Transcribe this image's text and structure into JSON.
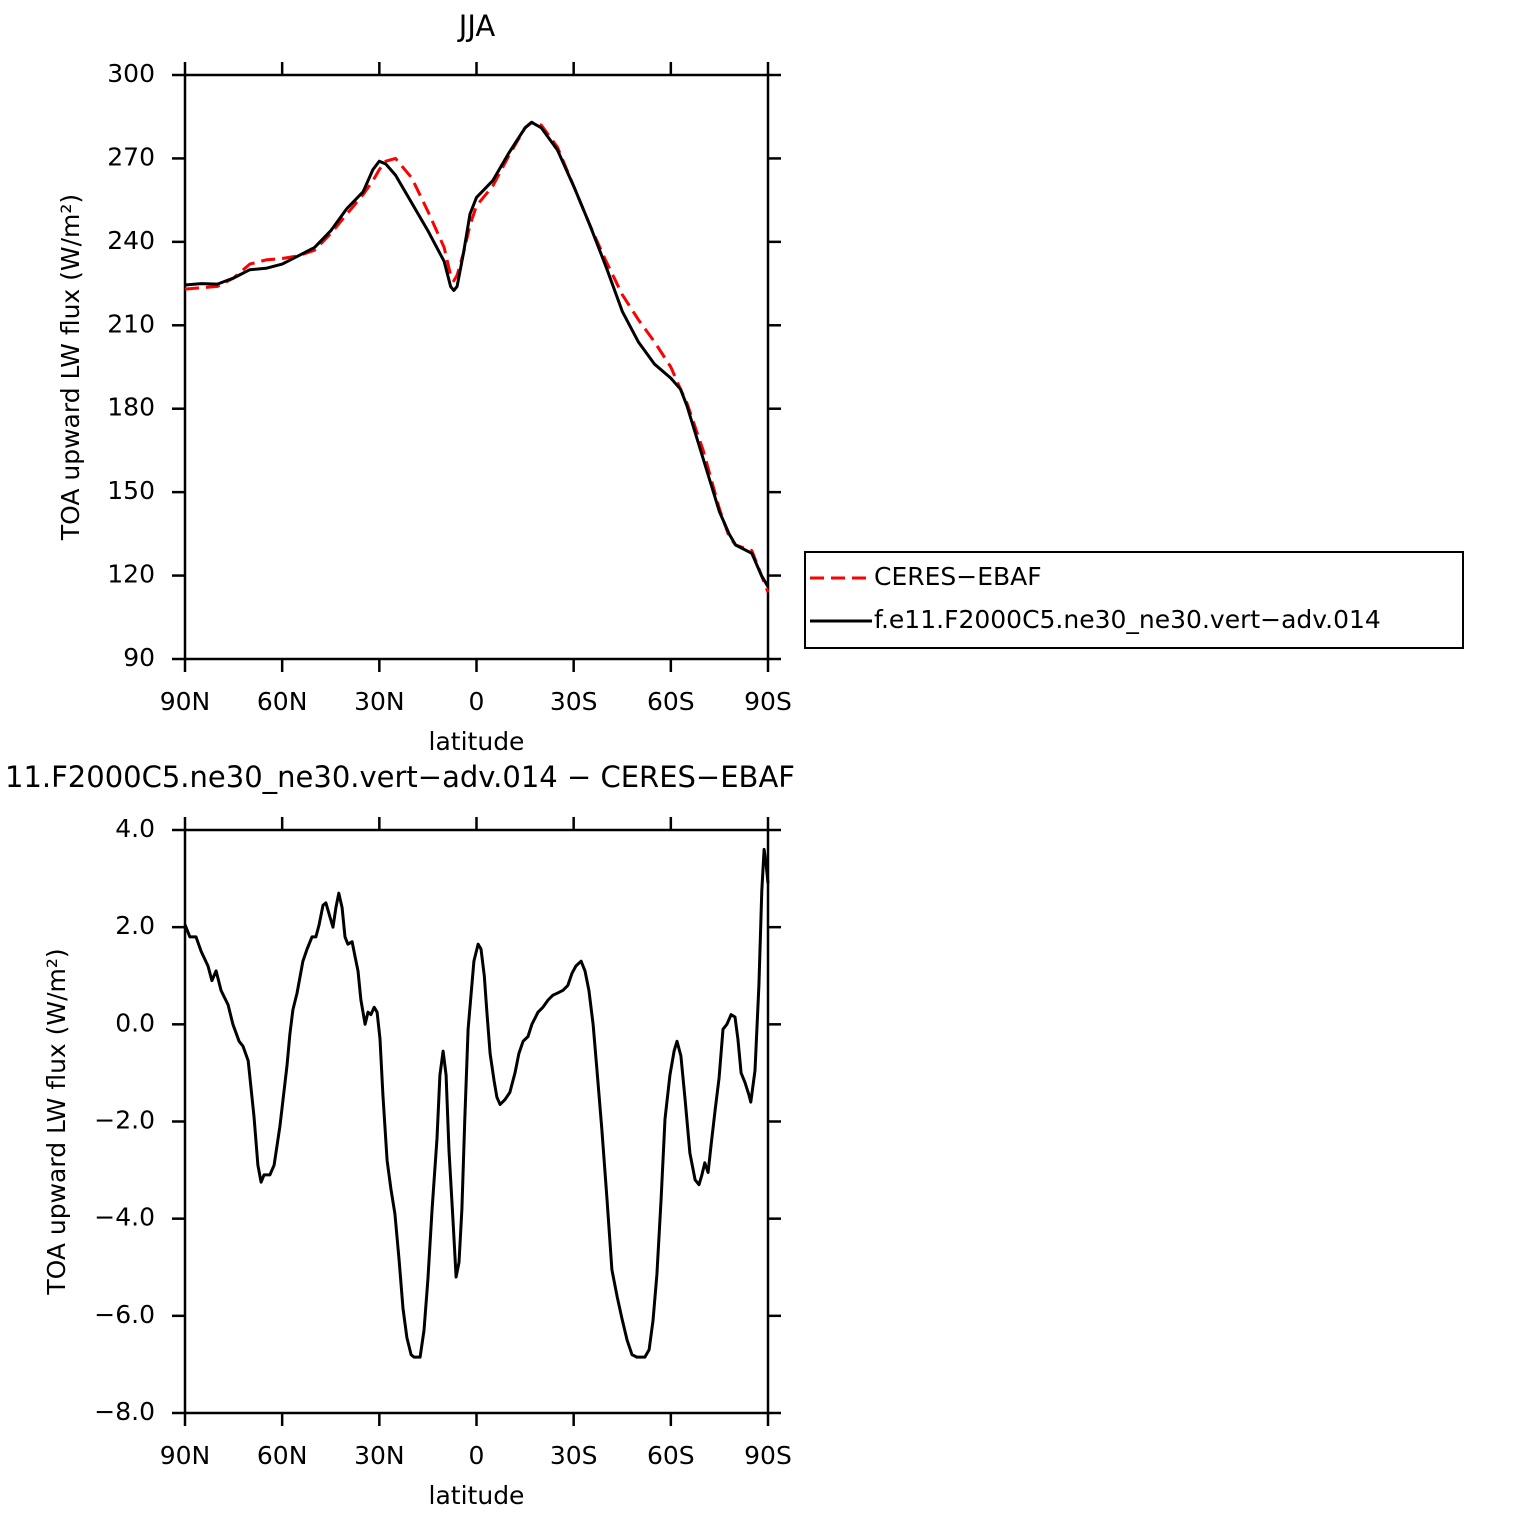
{
  "chart_data": [
    {
      "type": "line",
      "title": "JJA",
      "xlabel": "latitude",
      "ylabel": "TOA upward LW flux (W/m²)",
      "x": [
        90,
        85,
        80,
        75,
        70,
        65,
        60,
        55,
        50,
        45,
        40,
        35,
        32,
        30,
        28,
        25,
        20,
        15,
        10,
        8,
        7,
        6,
        4,
        2,
        0,
        -5,
        -10,
        -15,
        -17,
        -20,
        -25,
        -30,
        -35,
        -40,
        -45,
        -50,
        -55,
        -60,
        -63,
        -65,
        -70,
        -75,
        -78,
        -80,
        -85,
        -88,
        -90
      ],
      "series": [
        {
          "name": "CERES−EBAF",
          "color": "#ff0000",
          "linestyle": "dashed",
          "values": [
            223,
            223.5,
            224,
            227,
            232,
            233.5,
            234,
            235,
            237,
            243,
            250,
            257,
            262,
            266,
            269,
            270,
            263,
            251,
            238,
            228,
            226,
            228,
            236,
            246,
            253,
            260,
            271,
            281,
            283,
            282,
            274,
            260,
            246,
            233,
            221,
            212,
            204,
            195,
            187,
            182,
            165,
            144,
            134,
            131,
            129,
            120,
            114
          ]
        },
        {
          "name": "f.e11.F2000C5.ne30_ne30.vert−adv.014",
          "color": "#000000",
          "linestyle": "solid",
          "values": [
            224.5,
            225,
            224.8,
            227,
            230,
            230.5,
            232,
            235,
            238,
            244,
            252,
            258,
            266,
            269,
            268,
            264,
            254,
            244,
            233,
            224,
            222.5,
            224,
            236,
            250,
            256,
            262,
            272,
            281,
            283,
            281,
            273,
            260,
            246,
            231,
            215,
            204,
            196,
            191,
            187,
            181,
            162,
            143,
            135,
            131,
            128,
            120,
            116
          ]
        }
      ],
      "xlim": [
        90,
        -90
      ],
      "xticks": [
        {
          "value": 90,
          "label": "90N"
        },
        {
          "value": 60,
          "label": "60N"
        },
        {
          "value": 30,
          "label": "30N"
        },
        0,
        {
          "value": -30,
          "label": "30S"
        },
        {
          "value": -60,
          "label": "60S"
        },
        {
          "value": -90,
          "label": "90S"
        }
      ],
      "ylim": [
        90,
        300
      ],
      "yticks": [
        90,
        120,
        150,
        180,
        210,
        240,
        270,
        300
      ],
      "legend": "outside-right"
    },
    {
      "type": "line",
      "title": "11.F2000C5.ne30_ne30.vert−adv.014 − CERES−EBAF",
      "xlabel": "latitude",
      "ylabel": "TOA upward LW flux (W/m²)",
      "x": [
        90,
        88.5,
        86.6,
        85,
        82.9,
        81.7,
        80.4,
        78.9,
        76.7,
        75.2,
        73.3,
        72.1,
        70.5,
        68.7,
        67.5,
        66.5,
        65.6,
        63.8,
        62.5,
        60.7,
        58.5,
        57.6,
        56.7,
        55.4,
        53.6,
        52.3,
        50.8,
        49.6,
        48.6,
        47.4,
        46.5,
        45.2,
        44.3,
        43.4,
        42.5,
        41.5,
        40.6,
        39.7,
        38.4,
        37.5,
        36.6,
        35.7,
        34.4,
        33.5,
        32.6,
        31.6,
        30.7,
        29.8,
        28.9,
        27.6,
        26.4,
        25.2,
        23.9,
        22.7,
        21.5,
        20.2,
        19.3,
        17.4,
        16.2,
        15,
        13.7,
        12.2,
        11.3,
        10.3,
        9.4,
        8.5,
        7.3,
        6.3,
        5.4,
        4.5,
        3.6,
        2.6,
        1.7,
        0.8,
        -0.5,
        -1.4,
        -2.4,
        -3.2,
        -4.2,
        -5.4,
        -6.3,
        -7.3,
        -8.8,
        -10.3,
        -11.9,
        -13.1,
        -14.4,
        -15.9,
        -17.1,
        -19,
        -20.5,
        -22.1,
        -23.6,
        -25.2,
        -26.7,
        -28.2,
        -29.5,
        -30.7,
        -32.3,
        -33.5,
        -34.7,
        -36,
        -37.2,
        -38.7,
        -40.3,
        -41.8,
        -43.4,
        -44.9,
        -46.5,
        -48,
        -49.5,
        -52,
        -53.3,
        -54.5,
        -55.7,
        -57,
        -58.2,
        -59.7,
        -61,
        -61.9,
        -63.1,
        -64.4,
        -65.9,
        -67.5,
        -68.7,
        -69.6,
        -70.5,
        -71.5,
        -72.4,
        -73.7,
        -74.9,
        -76.1,
        -77.3,
        -78.6,
        -79.8,
        -80.7,
        -81.7,
        -82.9,
        -84.1,
        -84.7,
        -86,
        -87.2,
        -88.1,
        -88.8,
        -89.4,
        -90
      ],
      "values": [
        2.05,
        1.8,
        1.8,
        1.5,
        1.2,
        0.9,
        1.1,
        0.7,
        0.4,
        0,
        -0.35,
        -0.45,
        -0.75,
        -1.9,
        -2.9,
        -3.25,
        -3.1,
        -3.1,
        -2.9,
        -2.1,
        -0.85,
        -0.2,
        0.3,
        0.65,
        1.3,
        1.55,
        1.8,
        1.8,
        2.05,
        2.45,
        2.5,
        2.2,
        2,
        2.4,
        2.7,
        2.4,
        1.8,
        1.65,
        1.7,
        1.4,
        1.1,
        0.5,
        0,
        0.25,
        0.2,
        0.35,
        0.25,
        -0.3,
        -1.45,
        -2.8,
        -3.4,
        -3.9,
        -4.85,
        -5.85,
        -6.45,
        -6.8,
        -6.85,
        -6.85,
        -6.3,
        -5.25,
        -3.8,
        -2.35,
        -1.05,
        -0.55,
        -1.05,
        -2.6,
        -4,
        -5.2,
        -4.9,
        -3.8,
        -1.95,
        -0.1,
        0.6,
        1.3,
        1.65,
        1.55,
        1,
        0.25,
        -0.6,
        -1.15,
        -1.5,
        -1.65,
        -1.55,
        -1.4,
        -1,
        -0.6,
        -0.35,
        -0.25,
        0,
        0.25,
        0.35,
        0.5,
        0.6,
        0.65,
        0.7,
        0.8,
        1.05,
        1.2,
        1.3,
        1.1,
        0.7,
        0,
        -0.95,
        -2.15,
        -3.6,
        -5.05,
        -5.6,
        -6.05,
        -6.5,
        -6.8,
        -6.85,
        -6.85,
        -6.7,
        -6.1,
        -5.15,
        -3.6,
        -1.95,
        -1.05,
        -0.55,
        -0.35,
        -0.65,
        -1.55,
        -2.65,
        -3.2,
        -3.3,
        -3.1,
        -2.85,
        -3.05,
        -2.5,
        -1.75,
        -1.1,
        -0.1,
        0,
        0.2,
        0.15,
        -0.3,
        -1,
        -1.2,
        -1.45,
        -1.6,
        -0.95,
        0.8,
        2.75,
        3.6,
        3.3,
        2.9
      ],
      "color": "#000000",
      "xlim": [
        90,
        -90
      ],
      "xticks": [
        {
          "value": 90,
          "label": "90N"
        },
        {
          "value": 60,
          "label": "60N"
        },
        {
          "value": 30,
          "label": "30N"
        },
        0,
        {
          "value": -30,
          "label": "30S"
        },
        {
          "value": -60,
          "label": "60S"
        },
        {
          "value": -90,
          "label": "90S"
        }
      ],
      "ylim": [
        -8,
        4
      ],
      "yticks": [
        {
          "value": -8,
          "label": "−8.0"
        },
        {
          "value": -6,
          "label": "−6.0"
        },
        {
          "value": -4,
          "label": "−4.0"
        },
        {
          "value": -2,
          "label": "−2.0"
        },
        {
          "value": 0,
          "label": "0.0"
        },
        {
          "value": 2,
          "label": "2.0"
        },
        {
          "value": 4,
          "label": "4.0"
        }
      ]
    }
  ]
}
